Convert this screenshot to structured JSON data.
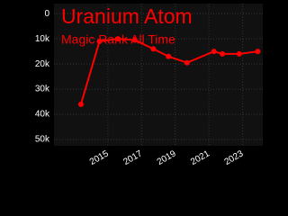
{
  "chart_data": {
    "type": "line",
    "title": "Uranium Atom",
    "subtitle": "Magic Rank All Time",
    "x": [
      2013.4,
      2014.5,
      2015.6,
      2016.6,
      2017.7,
      2018.6,
      2019.7,
      2021.3,
      2021.8,
      2022.8,
      2023.9
    ],
    "values": [
      36000,
      11000,
      10000,
      10500,
      14000,
      17000,
      19500,
      15000,
      16000,
      16000,
      15000
    ],
    "color": "#ff0000",
    "xlim": [
      2011.8,
      2024.2
    ],
    "xticks": [
      2015,
      2017,
      2019,
      2021,
      2023
    ],
    "ylim": [
      52500,
      -4000
    ],
    "yticks": [
      0,
      {
        "value": 10000,
        "label": "10k"
      },
      {
        "value": 20000,
        "label": "20k"
      },
      {
        "value": 30000,
        "label": "30k"
      },
      {
        "value": 40000,
        "label": "40k"
      },
      {
        "value": 50000,
        "label": "50k"
      }
    ],
    "grid": true
  }
}
